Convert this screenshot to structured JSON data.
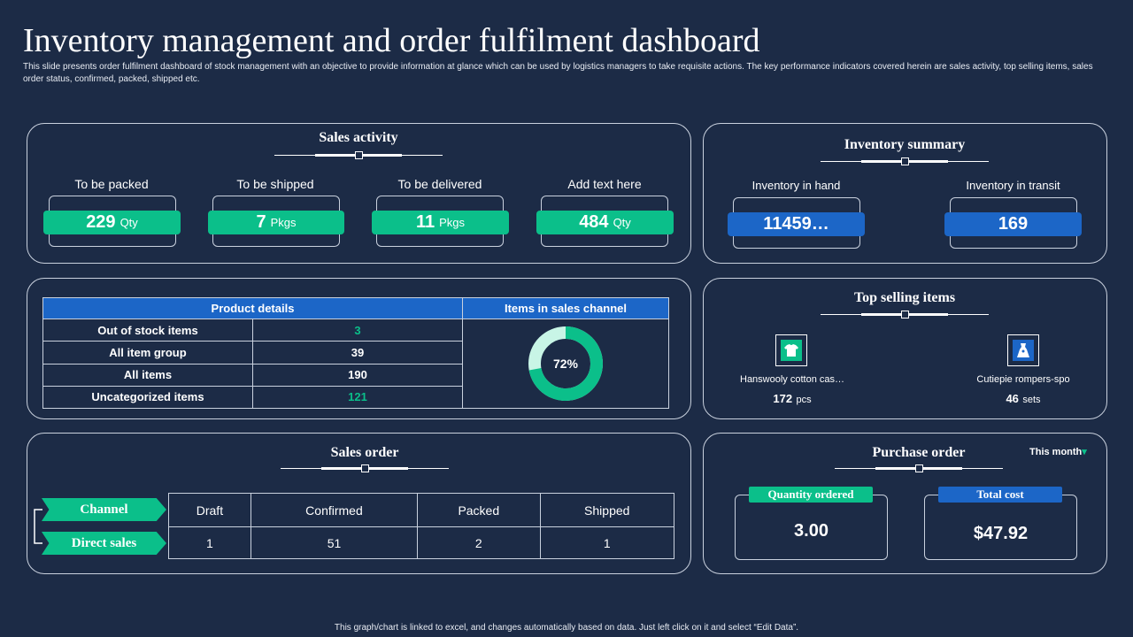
{
  "page": {
    "title": "Inventory management and order fulfilment dashboard",
    "subtitle": "This slide presents order fulfilment dashboard of stock management  with an objective to provide information at glance which can be used by logistics managers to take requisite actions. The key performance indicators covered herein are sales activity, top selling items,  sales order status, confirmed, packed, shipped etc.",
    "footer": "This graph/chart is linked to excel, and changes automatically based on data. Just left click on it and select “Edit Data”."
  },
  "colors": {
    "background": "#1c2b46",
    "accent_green": "#0bbf8a",
    "accent_blue": "#1c66c7",
    "border": "#c9d1de"
  },
  "sales_activity": {
    "title": "Sales activity",
    "metrics": [
      {
        "label": "To be packed",
        "value": "229",
        "unit": "Qty"
      },
      {
        "label": "To be shipped",
        "value": "7",
        "unit": "Pkgs"
      },
      {
        "label": "To be delivered",
        "value": "11",
        "unit": "Pkgs"
      },
      {
        "label": "Add text here",
        "value": "484",
        "unit": "Qty"
      }
    ]
  },
  "inventory_summary": {
    "title": "Inventory summary",
    "metrics": [
      {
        "label": "Inventory  in hand",
        "value": "11459…"
      },
      {
        "label": "Inventory  in transit",
        "value": "169"
      }
    ]
  },
  "product_details": {
    "header": "Product details",
    "rows": [
      {
        "label": "Out of stock items",
        "value": "3",
        "highlight": true
      },
      {
        "label": "All item group",
        "value": "39",
        "highlight": false
      },
      {
        "label": "All items",
        "value": "190",
        "highlight": false
      },
      {
        "label": "Uncategorized items",
        "value": "121",
        "highlight": true
      }
    ],
    "highlight_color": "#0bbf8a"
  },
  "sales_channel": {
    "header": "Items in sales channel",
    "percent_label": "72%"
  },
  "chart_data": {
    "type": "pie",
    "title": "Items in sales channel",
    "values": [
      72,
      28
    ],
    "colors": [
      "#0bbf8a",
      "#c8f5e6"
    ]
  },
  "top_selling": {
    "title": "Top selling items",
    "items": [
      {
        "name": "Hanswooly cotton cas…",
        "qty": "172",
        "unit": "pcs",
        "icon": "tshirt-icon"
      },
      {
        "name": "Cutiepie rompers-spo",
        "qty": "46",
        "unit": "sets",
        "icon": "dress-icon"
      }
    ]
  },
  "sales_order": {
    "title": "Sales order",
    "row_labels": [
      "Channel",
      "Direct sales"
    ],
    "columns": [
      "Draft",
      "Confirmed",
      "Packed",
      "Shipped"
    ],
    "values": [
      "1",
      "51",
      "2",
      "1"
    ]
  },
  "purchase_order": {
    "title": "Purchase order",
    "period": "This month",
    "period_arrow": "▾",
    "quantity_label": "Quantity ordered",
    "quantity_value": "3.00",
    "cost_label": "Total cost",
    "cost_value": "$47.92"
  }
}
